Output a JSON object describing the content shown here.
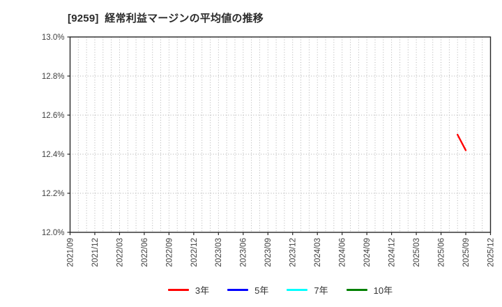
{
  "header": {
    "title": "[9259]  経常利益マージンの平均値の推移"
  },
  "chart_data": {
    "type": "line",
    "title": "[9259] 経常利益マージンの平均値の推移",
    "xlabel": "",
    "ylabel": "",
    "y_unit": "%",
    "ylim": [
      12.0,
      13.0
    ],
    "y_tick_step": 0.2,
    "y_tick_labels": [
      "12.0%",
      "12.2%",
      "12.4%",
      "12.6%",
      "12.8%",
      "13.0%"
    ],
    "x_start": "2021/09",
    "x_end": "2025/12",
    "x_tick_labels": [
      "2021/09",
      "2021/12",
      "2022/03",
      "2022/06",
      "2022/09",
      "2022/12",
      "2023/03",
      "2023/06",
      "2023/09",
      "2023/12",
      "2024/03",
      "2024/06",
      "2024/09",
      "2024/12",
      "2025/03",
      "2025/06",
      "2025/09",
      "2025/12"
    ],
    "grid": {
      "style": "dotted",
      "vertical": "monthly",
      "horizontal": "every 0.2%",
      "color": "#a8a8a8"
    },
    "legend": {
      "position": "bottom-center",
      "entries": [
        {
          "label": "3年",
          "color": "#ff0000"
        },
        {
          "label": "5年",
          "color": "#0000ff"
        },
        {
          "label": "7年",
          "color": "#00ffff"
        },
        {
          "label": "10年",
          "color": "#008000"
        }
      ]
    },
    "series": [
      {
        "name": "3年",
        "color": "#ff0000",
        "points": [
          [
            "2025/08",
            12.5
          ],
          [
            "2025/09",
            12.42
          ]
        ]
      },
      {
        "name": "5年",
        "color": "#0000ff",
        "points": []
      },
      {
        "name": "7年",
        "color": "#00ffff",
        "points": []
      },
      {
        "name": "10年",
        "color": "#008000",
        "points": []
      }
    ]
  },
  "style_tokens": {
    "spine_color": "#262626",
    "tick_label_color": "#404040",
    "title_color": "#2b2b2b",
    "background": "#ffffff"
  }
}
